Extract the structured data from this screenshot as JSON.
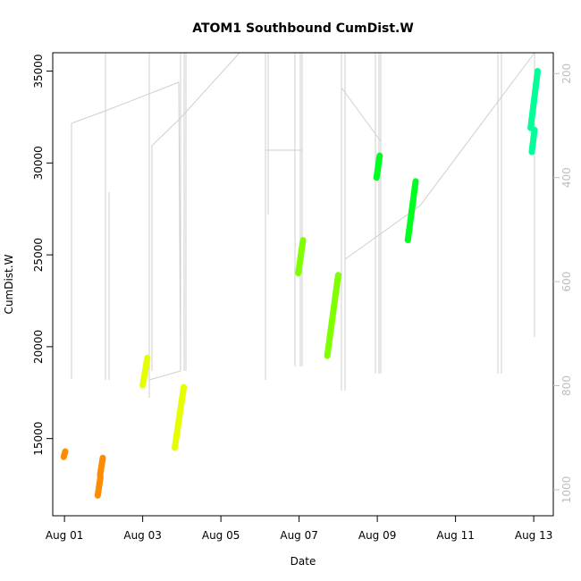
{
  "chart_data": {
    "type": "scatter",
    "title": "ATOM1 Southbound CumDist.W",
    "xlabel": "Date",
    "ylabel": "CumDist.W",
    "xlim": [
      -0.3,
      12.5
    ],
    "ylim": [
      10800,
      36000
    ],
    "y2lim": [
      1050,
      160
    ],
    "x_ticks": [
      {
        "value": 0,
        "label": "Aug 01"
      },
      {
        "value": 2,
        "label": "Aug 03"
      },
      {
        "value": 4,
        "label": "Aug 05"
      },
      {
        "value": 6,
        "label": "Aug 07"
      },
      {
        "value": 8,
        "label": "Aug 09"
      },
      {
        "value": 10,
        "label": "Aug 11"
      },
      {
        "value": 12,
        "label": "Aug 13"
      }
    ],
    "y_ticks": [
      15000,
      20000,
      25000,
      30000,
      35000
    ],
    "y2_ticks": [
      200,
      400,
      600,
      800,
      1000
    ],
    "segments": [
      {
        "color": "#FF8C00",
        "x": [
          -0.02,
          0.02
        ],
        "y": [
          14000,
          14300
        ]
      },
      {
        "color": "#FF8C00",
        "x": [
          0.85,
          0.92
        ],
        "y": [
          11900,
          12900
        ]
      },
      {
        "color": "#FF8C00",
        "x": [
          0.91,
          0.98
        ],
        "y": [
          13000,
          13950
        ]
      },
      {
        "color": "#E6FF00",
        "x": [
          2.0,
          2.12
        ],
        "y": [
          17900,
          19400
        ]
      },
      {
        "color": "#E6FF00",
        "x": [
          2.82,
          3.05
        ],
        "y": [
          14500,
          17800
        ]
      },
      {
        "color": "#80FF00",
        "x": [
          5.98,
          6.1
        ],
        "y": [
          24000,
          25800
        ]
      },
      {
        "color": "#80FF00",
        "x": [
          6.72,
          7.0
        ],
        "y": [
          19500,
          23900
        ]
      },
      {
        "color": "#00FF20",
        "x": [
          7.98,
          8.06
        ],
        "y": [
          29200,
          30400
        ]
      },
      {
        "color": "#00FF20",
        "x": [
          8.78,
          8.98
        ],
        "y": [
          25800,
          29000
        ]
      },
      {
        "color": "#00FF99",
        "x": [
          11.92,
          12.1
        ],
        "y": [
          31900,
          35000
        ]
      },
      {
        "color": "#00FF99",
        "x": [
          11.95,
          12.02
        ],
        "y": [
          30600,
          31800
        ]
      }
    ],
    "grid": false,
    "legend": "none"
  }
}
